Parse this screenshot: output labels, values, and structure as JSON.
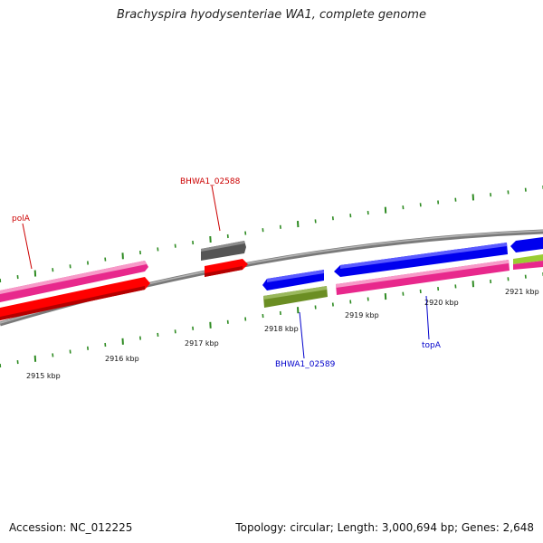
{
  "title": "Brachyspira hyodysenteriae WA1, complete genome",
  "footer": {
    "accession": "Accession: NC_012225",
    "summary": "Topology: circular; Length: 3,000,694 bp; Genes: 2,648"
  },
  "chart_data": {
    "type": "genome-map",
    "axis_unit": "kbp",
    "ticks": [
      {
        "kbp": 2915,
        "label": "2915 kbp"
      },
      {
        "kbp": 2916,
        "label": "2916 kbp"
      },
      {
        "kbp": 2917,
        "label": "2917 kbp"
      },
      {
        "kbp": 2918,
        "label": "2918 kbp"
      },
      {
        "kbp": 2919,
        "label": "2919 kbp"
      },
      {
        "kbp": 2920,
        "label": "2920 kbp"
      },
      {
        "kbp": 2921,
        "label": "2921 kbp"
      }
    ],
    "gene_labels": [
      {
        "name": "polA",
        "color": "#cc0000"
      },
      {
        "name": "BHWA1_02588",
        "color": "#cc0000"
      },
      {
        "name": "BHWA1_02589",
        "color": "#0000cc"
      },
      {
        "name": "topA",
        "color": "#0000cc"
      }
    ],
    "features": [
      {
        "track": "outer-forward",
        "color": "#e8288c",
        "start_kbp": 2914.3,
        "end_kbp": 2916.3
      },
      {
        "track": "outer-reverse",
        "color": "#ff0000",
        "start_kbp": 2914.3,
        "end_kbp": 2916.3
      },
      {
        "track": "inner-forward",
        "color": "#555555",
        "start_kbp": 2916.8,
        "end_kbp": 2917.15
      },
      {
        "track": "inner-reverse",
        "color": "#ff0000",
        "start_kbp": 2916.8,
        "end_kbp": 2917.15
      },
      {
        "track": "inner-forward",
        "color": "#0000ee",
        "start_kbp": 2917.4,
        "end_kbp": 2917.95
      },
      {
        "track": "inner-reverse",
        "color": "#6b8e23",
        "start_kbp": 2917.4,
        "end_kbp": 2917.95
      },
      {
        "track": "inner-forward",
        "color": "#0000ee",
        "start_kbp": 2918.3,
        "end_kbp": 2920.6
      },
      {
        "track": "inner-reverse",
        "color": "#e8288c",
        "start_kbp": 2918.3,
        "end_kbp": 2920.6
      },
      {
        "track": "inner-forward",
        "color": "#0000ee",
        "start_kbp": 2920.8,
        "end_kbp": 2921.3
      },
      {
        "track": "inner-reverse",
        "color": "#9acd32",
        "start_kbp": 2920.8,
        "end_kbp": 2921.3
      }
    ]
  }
}
